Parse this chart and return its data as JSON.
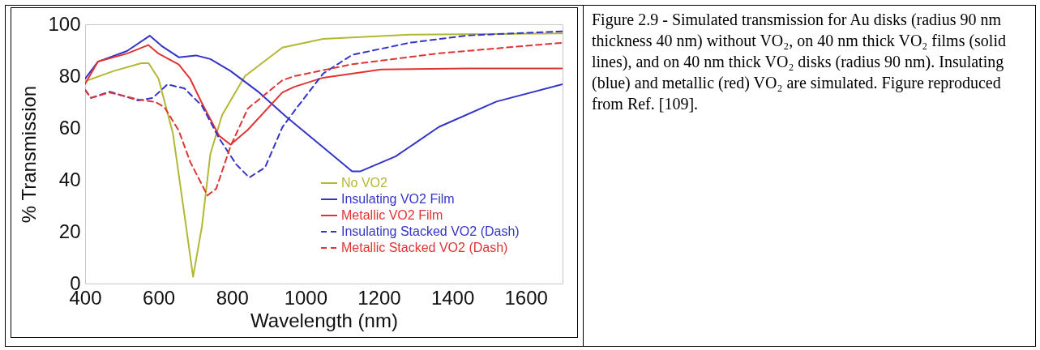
{
  "chart_data": {
    "type": "line",
    "xlabel": "Wavelength (nm)",
    "ylabel": "% Transmission",
    "xlim": [
      400,
      1700
    ],
    "ylim": [
      0,
      100
    ],
    "xticks": [
      400,
      600,
      800,
      1000,
      1200,
      1400,
      1600
    ],
    "yticks": [
      0,
      20,
      40,
      60,
      80,
      100
    ],
    "grid": false,
    "legend": "right",
    "annotations": [
      "Figure 2.9 - Simulated transmission for Au disks (radius 90 nm thickness 40 nm) without VO₂, on 40 nm thick VO₂ films (solid lines), and on 40 nm thick VO₂ disks (radius 90 nm). Insulating (blue) and metallic (red) VO₂ are simulated. Figure reproduced from Ref. [109]."
    ],
    "series": [
      {
        "name": "No VO2",
        "color": "#b3b834",
        "line_style": "solid",
        "x": [
          400,
          478,
          553,
          573,
          600,
          639,
          670,
          694,
          718,
          741,
          773,
          835,
          937,
          1048,
          1284,
          1700
        ],
        "values": [
          78,
          82,
          85,
          85,
          79,
          58,
          27,
          2.6,
          22,
          50,
          65,
          80,
          91,
          94.4,
          96,
          96.5
        ]
      },
      {
        "name": "Insulating VO2 Film",
        "color": "#3434c8",
        "line_style": "solid",
        "x": [
          400,
          435,
          514,
          576,
          608,
          655,
          702,
          741,
          796,
          874,
          946,
          1048,
          1127,
          1150,
          1245,
          1363,
          1520,
          1700
        ],
        "values": [
          79,
          85.6,
          89.7,
          95.6,
          91.7,
          87.3,
          88,
          86.6,
          82,
          73.7,
          64.5,
          52.6,
          43.3,
          43.3,
          49,
          60.4,
          70.2,
          76.9
        ]
      },
      {
        "name": "Metallic VO2 Film",
        "color": "#e03434",
        "line_style": "solid",
        "x": [
          400,
          435,
          514,
          572,
          600,
          655,
          686,
          718,
          765,
          796,
          843,
          937,
          970,
          1048,
          1206,
          1441,
          1700
        ],
        "values": [
          77,
          85.6,
          88.7,
          92,
          88.7,
          84.5,
          79,
          69.6,
          57,
          53.6,
          59.3,
          73.7,
          75.9,
          79.4,
          82.6,
          83,
          83
        ]
      },
      {
        "name": "Insulating Stacked VO2 (Dash)",
        "color": "#3434c8",
        "line_style": "dashed",
        "x": [
          400,
          416,
          467,
          545,
          584,
          624,
          670,
          718,
          765,
          812,
          847,
          890,
          937,
          970,
          1048,
          1127,
          1284,
          1441,
          1700
        ],
        "values": [
          74.7,
          71.6,
          74,
          70.6,
          71.6,
          76.8,
          75.3,
          68.6,
          56,
          45.9,
          40.9,
          44.8,
          60.3,
          66.6,
          81,
          88.2,
          92.9,
          95.7,
          97.3
        ]
      },
      {
        "name": "Metallic Stacked VO2 (Dash)",
        "color": "#e03434",
        "line_style": "dashed",
        "x": [
          400,
          416,
          467,
          545,
          592,
          616,
          655,
          686,
          733,
          757,
          796,
          843,
          937,
          970,
          1127,
          1363,
          1700
        ],
        "values": [
          74.7,
          71.6,
          73.7,
          71,
          70,
          68,
          59,
          47,
          34,
          36.6,
          53,
          67.5,
          78.4,
          80,
          84.6,
          88.8,
          92.9
        ]
      }
    ]
  }
}
